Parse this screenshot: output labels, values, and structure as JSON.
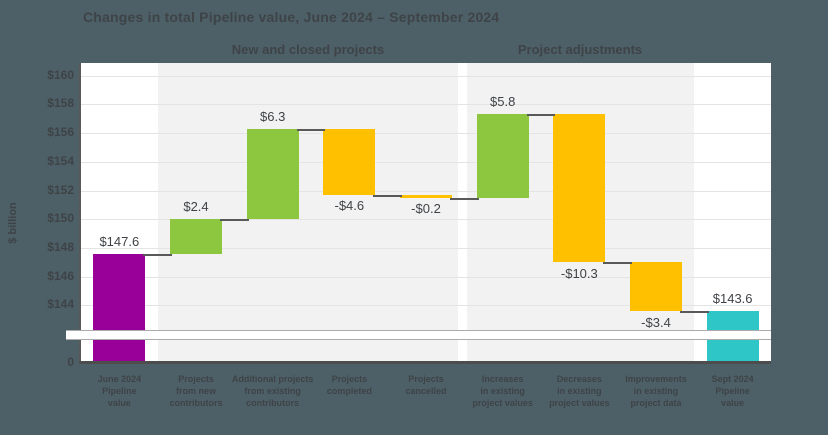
{
  "chart_data": {
    "type": "bar",
    "subtype": "waterfall",
    "title": "Changes in total Pipeline value, June 2024 – September 2024",
    "ylabel": "$ billion",
    "groups": [
      {
        "label": "New and closed projects",
        "bar_indexes": [
          1,
          2,
          3,
          4
        ]
      },
      {
        "label": "Project adjustments",
        "bar_indexes": [
          5,
          6,
          7
        ]
      }
    ],
    "categories": [
      "June 2024\nPipeline\nvalue",
      "Projects\nfrom new\ncontributors",
      "Additional projects\nfrom existing\ncontributors",
      "Projects\ncompleted",
      "Projects\ncancelled",
      "Increases\nin existing\nproject values",
      "Decreases\nin existing\nproject values",
      "Improvements\nin existing\nproject data",
      "Sept 2024\nPipeline\nvalue"
    ],
    "values": [
      147.6,
      2.4,
      6.3,
      -4.6,
      -0.2,
      5.8,
      -10.3,
      -3.4,
      143.6
    ],
    "value_labels": [
      "$147.6",
      "$2.4",
      "$6.3",
      "-$4.6",
      "-$0.2",
      "$5.8",
      "-$10.3",
      "-$3.4",
      "$143.6"
    ],
    "bar_kinds": [
      "total_start",
      "increase",
      "increase",
      "decrease",
      "decrease",
      "increase",
      "decrease",
      "decrease",
      "total_end"
    ],
    "cumulative": [
      147.6,
      150.0,
      156.3,
      151.7,
      151.5,
      157.3,
      147.0,
      143.6,
      143.6
    ],
    "y_ticks": [
      "$160",
      "$158",
      "$156",
      "$154",
      "$152",
      "$150",
      "$148",
      "$146",
      "$144"
    ],
    "y_tick_values": [
      160,
      158,
      156,
      154,
      152,
      150,
      148,
      146,
      144
    ],
    "y_zero_label": "0",
    "axis_break": true,
    "ylim_visible": [
      144,
      161
    ],
    "gridlines": true,
    "colors": {
      "total_start": "#990099",
      "increase": "#8dc63f",
      "decrease": "#ffc000",
      "total_end": "#2fc6c8",
      "connector": "#595959",
      "axis": "#4d4d4d",
      "background": "#4e6067",
      "plot_bg": "#ffffff",
      "band": "#f2f2f2",
      "gridline": "#e4e4e4",
      "break_line": "#ababab",
      "text": "#3d4347",
      "value_label_text": "#3f4347"
    }
  }
}
